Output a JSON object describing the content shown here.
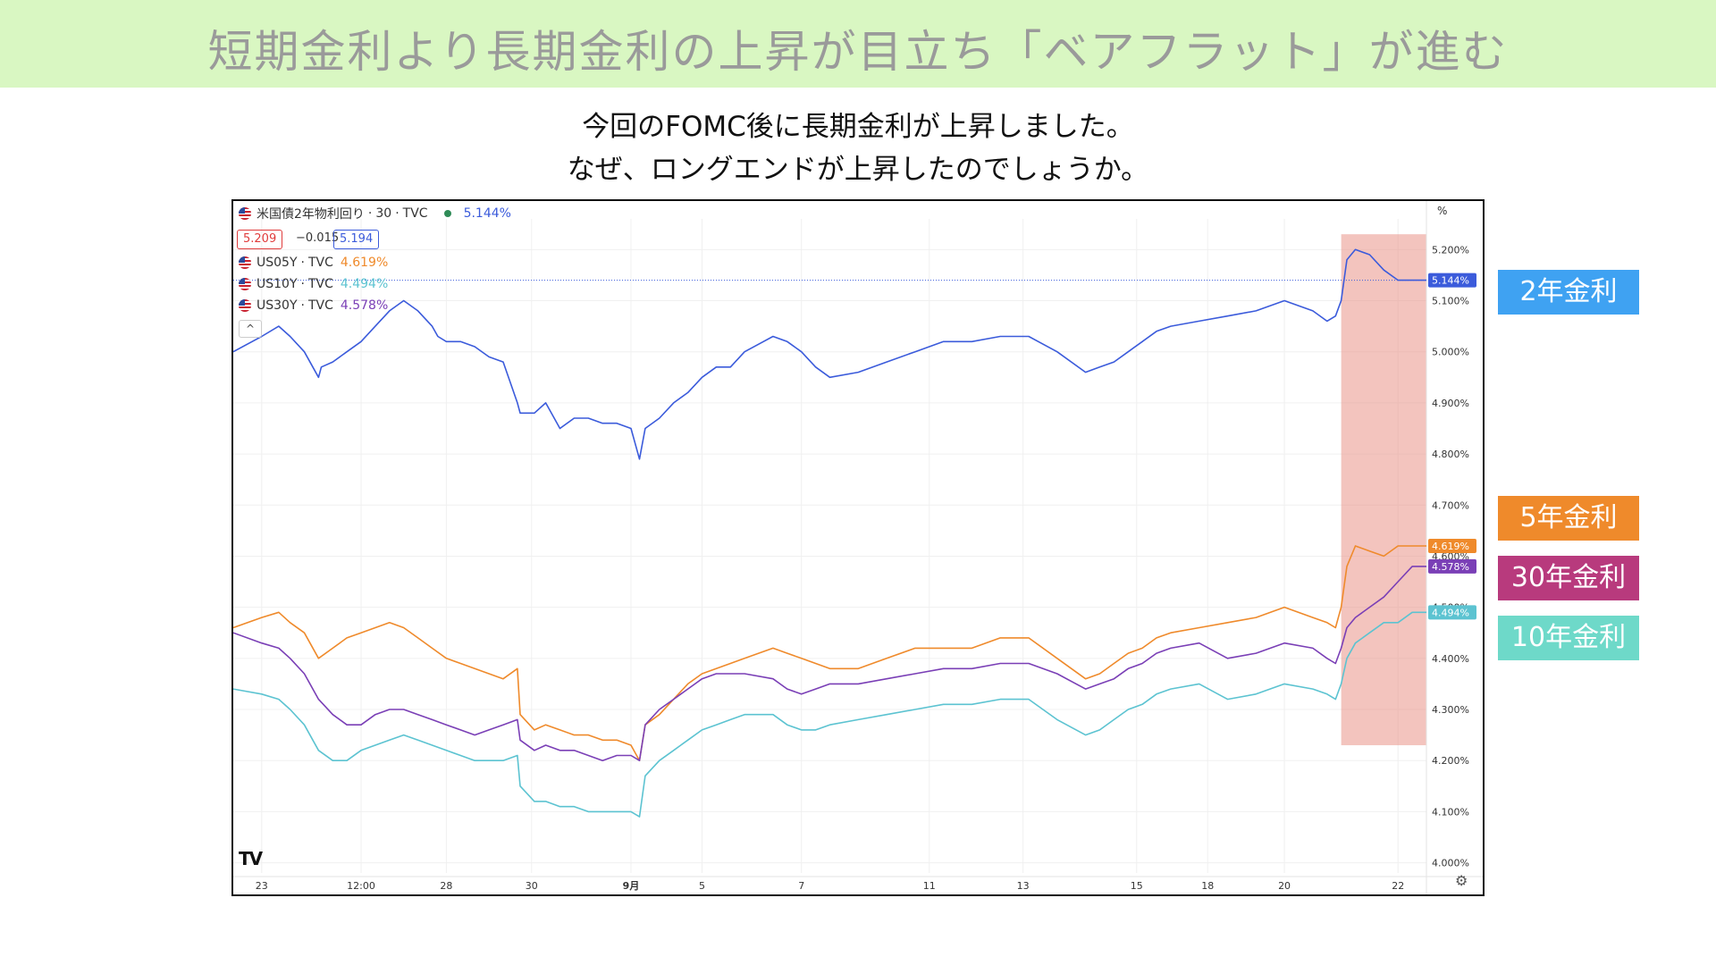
{
  "title": "短期金利より長期金利の上昇が目立ち「ベアフラット」が進む",
  "subtitle_lines": [
    "今回のFOMC後に長期金利が上昇しました。",
    "なぜ、ロングエンドが上昇したのでしょうか。"
  ],
  "chart_header": {
    "main_symbol": "米国債2年物利回り",
    "interval": "30",
    "source": "TVC",
    "main_value": "5.144%",
    "bid": "5.209",
    "change": "−0.015",
    "ask": "5.194",
    "legend": [
      {
        "symbol": "US05Y",
        "source": "TVC",
        "value": "4.619%",
        "color": "#ef8a2b"
      },
      {
        "symbol": "US10Y",
        "source": "TVC",
        "value": "4.494%",
        "color": "#5cc3d1"
      },
      {
        "symbol": "US30Y",
        "source": "TVC",
        "value": "4.578%",
        "color": "#7a3fb6"
      }
    ],
    "collapse_icon": "^",
    "logo": "TV",
    "unit": "%",
    "settings_icon": "⚙"
  },
  "side_labels": {
    "y2": {
      "text": "2年金利",
      "color": "#3fa2f2"
    },
    "y5": {
      "text": "5年金利",
      "color": "#ef8a2b"
    },
    "y30": {
      "text": "30年金利",
      "color": "#b83a7d"
    },
    "y10": {
      "text": "10年金利",
      "color": "#6ed9c9"
    }
  },
  "chart_data": {
    "type": "line",
    "title": "",
    "xlabel": "",
    "ylabel": "",
    "ylim": [
      3.98,
      5.26
    ],
    "y_ticks": [
      "5.200%",
      "5.100%",
      "5.000%",
      "4.900%",
      "4.800%",
      "4.700%",
      "4.600%",
      "4.500%",
      "4.400%",
      "4.300%",
      "4.200%",
      "4.100%",
      "4.000%"
    ],
    "y_tick_values": [
      5.2,
      5.1,
      5.0,
      4.9,
      4.8,
      4.7,
      4.6,
      4.5,
      4.4,
      4.3,
      4.2,
      4.1,
      4.0
    ],
    "x_ticks": [
      "23",
      "12:00",
      "28",
      "30",
      "9月",
      "5",
      "7",
      "11",
      "13",
      "15",
      "18",
      "20",
      "22"
    ],
    "x_tick_index": [
      1.0,
      4.5,
      7.5,
      10.5,
      14.0,
      16.5,
      20.0,
      24.5,
      27.8,
      31.8,
      34.3,
      37.0,
      41.0
    ],
    "x_range": [
      0,
      42
    ],
    "highlight_range": [
      39.0,
      42.0
    ],
    "highlight_ylim": [
      4.23,
      5.23
    ],
    "grid": true,
    "series": [
      {
        "name": "米国債2年物利回り",
        "color": "#3b5bdb",
        "label": "5.144%",
        "x": [
          0,
          1,
          1.6,
          2,
          2.5,
          3,
          3.1,
          3.5,
          4,
          4.5,
          5,
          5.5,
          6,
          6.5,
          7,
          7.2,
          7.5,
          8,
          8.5,
          9,
          9.5,
          10,
          10.1,
          10.6,
          11,
          11.5,
          12,
          12.5,
          13,
          13.5,
          14,
          14.3,
          14.5,
          15,
          15.5,
          16,
          16.5,
          17,
          17.5,
          18,
          19,
          19.5,
          20,
          20.5,
          21,
          22,
          23,
          24,
          25,
          26,
          27,
          28,
          29,
          30,
          30.5,
          31,
          31.5,
          32,
          32.5,
          33,
          34,
          35,
          36,
          37,
          38,
          38.5,
          38.8,
          39,
          39.2,
          39.5,
          40,
          40.5,
          41,
          41.5,
          42
        ],
        "y": [
          5.0,
          5.03,
          5.05,
          5.03,
          5.0,
          4.95,
          4.97,
          4.98,
          5.0,
          5.02,
          5.05,
          5.08,
          5.1,
          5.08,
          5.05,
          5.03,
          5.02,
          5.02,
          5.01,
          4.99,
          4.98,
          4.9,
          4.88,
          4.88,
          4.9,
          4.85,
          4.87,
          4.87,
          4.86,
          4.86,
          4.85,
          4.79,
          4.85,
          4.87,
          4.9,
          4.92,
          4.95,
          4.97,
          4.97,
          5.0,
          5.03,
          5.02,
          5.0,
          4.97,
          4.95,
          4.96,
          4.98,
          5.0,
          5.02,
          5.02,
          5.03,
          5.03,
          5.0,
          4.96,
          4.97,
          4.98,
          5.0,
          5.02,
          5.04,
          5.05,
          5.06,
          5.07,
          5.08,
          5.1,
          5.08,
          5.06,
          5.07,
          5.1,
          5.18,
          5.2,
          5.19,
          5.16,
          5.14,
          5.14,
          5.14
        ]
      },
      {
        "name": "US05Y",
        "color": "#ef8a2b",
        "label": "4.619%",
        "x": [
          0,
          1,
          1.6,
          2,
          2.5,
          3,
          3.5,
          4,
          4.5,
          5,
          5.5,
          6,
          6.5,
          7,
          7.5,
          8,
          8.5,
          9,
          9.5,
          10,
          10.1,
          10.6,
          11,
          11.5,
          12,
          12.5,
          13,
          13.5,
          14,
          14.3,
          14.5,
          15,
          15.5,
          16,
          16.5,
          17,
          17.5,
          18,
          19,
          19.5,
          20,
          20.5,
          21,
          22,
          23,
          24,
          25,
          26,
          27,
          28,
          29,
          30,
          30.5,
          31,
          31.5,
          32,
          32.5,
          33,
          34,
          35,
          36,
          37,
          38,
          38.5,
          38.8,
          39,
          39.2,
          39.5,
          40,
          40.5,
          41,
          41.5,
          42
        ],
        "y": [
          4.46,
          4.48,
          4.49,
          4.47,
          4.45,
          4.4,
          4.42,
          4.44,
          4.45,
          4.46,
          4.47,
          4.46,
          4.44,
          4.42,
          4.4,
          4.39,
          4.38,
          4.37,
          4.36,
          4.38,
          4.29,
          4.26,
          4.27,
          4.26,
          4.25,
          4.25,
          4.24,
          4.24,
          4.23,
          4.2,
          4.27,
          4.29,
          4.32,
          4.35,
          4.37,
          4.38,
          4.39,
          4.4,
          4.42,
          4.41,
          4.4,
          4.39,
          4.38,
          4.38,
          4.4,
          4.42,
          4.42,
          4.42,
          4.44,
          4.44,
          4.4,
          4.36,
          4.37,
          4.39,
          4.41,
          4.42,
          4.44,
          4.45,
          4.46,
          4.47,
          4.48,
          4.5,
          4.48,
          4.47,
          4.46,
          4.5,
          4.58,
          4.62,
          4.61,
          4.6,
          4.62,
          4.62,
          4.62
        ]
      },
      {
        "name": "US30Y",
        "color": "#7a3fb6",
        "label": "4.578%",
        "x": [
          0,
          1,
          1.6,
          2,
          2.5,
          3,
          3.5,
          4,
          4.5,
          5,
          5.5,
          6,
          6.5,
          7,
          7.5,
          8,
          8.5,
          9,
          9.5,
          10,
          10.1,
          10.6,
          11,
          11.5,
          12,
          12.5,
          13,
          13.5,
          14,
          14.3,
          14.5,
          15,
          15.5,
          16,
          16.5,
          17,
          17.5,
          18,
          19,
          19.5,
          20,
          20.5,
          21,
          22,
          23,
          24,
          25,
          26,
          27,
          28,
          29,
          30,
          30.5,
          31,
          31.5,
          32,
          32.5,
          33,
          34,
          35,
          36,
          37,
          38,
          38.5,
          38.8,
          39,
          39.2,
          39.5,
          40,
          40.5,
          41,
          41.5,
          42
        ],
        "y": [
          4.45,
          4.43,
          4.42,
          4.4,
          4.37,
          4.32,
          4.29,
          4.27,
          4.27,
          4.29,
          4.3,
          4.3,
          4.29,
          4.28,
          4.27,
          4.26,
          4.25,
          4.26,
          4.27,
          4.28,
          4.24,
          4.22,
          4.23,
          4.22,
          4.22,
          4.21,
          4.2,
          4.21,
          4.21,
          4.2,
          4.27,
          4.3,
          4.32,
          4.34,
          4.36,
          4.37,
          4.37,
          4.37,
          4.36,
          4.34,
          4.33,
          4.34,
          4.35,
          4.35,
          4.36,
          4.37,
          4.38,
          4.38,
          4.39,
          4.39,
          4.37,
          4.34,
          4.35,
          4.36,
          4.38,
          4.39,
          4.41,
          4.42,
          4.43,
          4.4,
          4.41,
          4.43,
          4.42,
          4.4,
          4.39,
          4.42,
          4.46,
          4.48,
          4.5,
          4.52,
          4.55,
          4.58,
          4.58
        ]
      },
      {
        "name": "US10Y",
        "color": "#5cc3d1",
        "label": "4.494%",
        "x": [
          0,
          1,
          1.6,
          2,
          2.5,
          3,
          3.5,
          4,
          4.5,
          5,
          5.5,
          6,
          6.5,
          7,
          7.5,
          8,
          8.5,
          9,
          9.5,
          10,
          10.1,
          10.6,
          11,
          11.5,
          12,
          12.5,
          13,
          13.5,
          14,
          14.3,
          14.5,
          15,
          15.5,
          16,
          16.5,
          17,
          17.5,
          18,
          19,
          19.5,
          20,
          20.5,
          21,
          22,
          23,
          24,
          25,
          26,
          27,
          28,
          29,
          30,
          30.5,
          31,
          31.5,
          32,
          32.5,
          33,
          34,
          35,
          36,
          37,
          38,
          38.5,
          38.8,
          39,
          39.2,
          39.5,
          40,
          40.5,
          41,
          41.5,
          42
        ],
        "y": [
          4.34,
          4.33,
          4.32,
          4.3,
          4.27,
          4.22,
          4.2,
          4.2,
          4.22,
          4.23,
          4.24,
          4.25,
          4.24,
          4.23,
          4.22,
          4.21,
          4.2,
          4.2,
          4.2,
          4.21,
          4.15,
          4.12,
          4.12,
          4.11,
          4.11,
          4.1,
          4.1,
          4.1,
          4.1,
          4.09,
          4.17,
          4.2,
          4.22,
          4.24,
          4.26,
          4.27,
          4.28,
          4.29,
          4.29,
          4.27,
          4.26,
          4.26,
          4.27,
          4.28,
          4.29,
          4.3,
          4.31,
          4.31,
          4.32,
          4.32,
          4.28,
          4.25,
          4.26,
          4.28,
          4.3,
          4.31,
          4.33,
          4.34,
          4.35,
          4.32,
          4.33,
          4.35,
          4.34,
          4.33,
          4.32,
          4.35,
          4.4,
          4.43,
          4.45,
          4.47,
          4.47,
          4.49,
          4.49
        ]
      }
    ]
  }
}
